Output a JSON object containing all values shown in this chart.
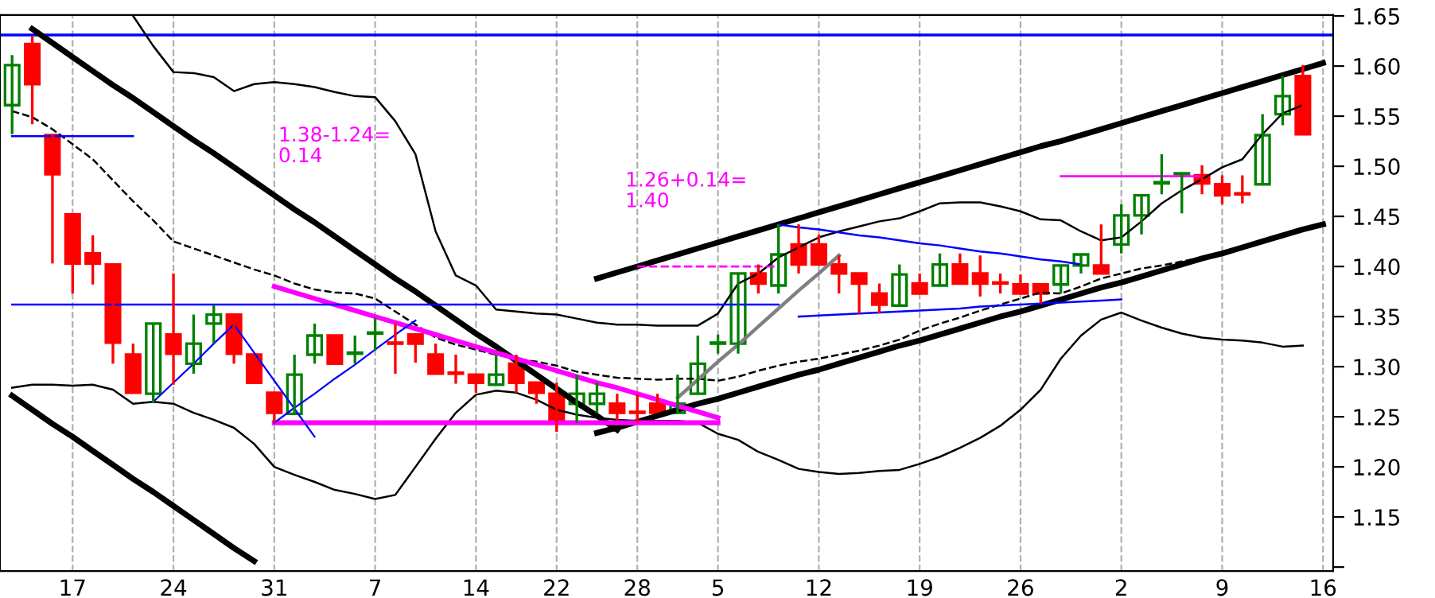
{
  "chart_data": {
    "type": "candlestick",
    "categories": [
      null,
      null,
      null,
      "17",
      null,
      null,
      null,
      null,
      "24",
      null,
      null,
      null,
      null,
      "31",
      null,
      null,
      null,
      null,
      "7",
      null,
      null,
      null,
      null,
      "14",
      null,
      null,
      null,
      "22",
      null,
      null,
      null,
      "28",
      null,
      null,
      null,
      "5",
      null,
      null,
      null,
      null,
      "12",
      null,
      null,
      null,
      null,
      "19",
      null,
      null,
      null,
      null,
      "26",
      null,
      null,
      null,
      null,
      "2",
      null,
      null,
      null,
      null,
      "9",
      null,
      null,
      null,
      null,
      "16"
    ],
    "ohlc": [
      [
        1.561,
        1.611,
        1.532,
        1.601
      ],
      [
        1.622,
        1.63,
        1.542,
        1.582
      ],
      [
        1.531,
        1.531,
        1.403,
        1.492
      ],
      [
        1.452,
        1.452,
        1.373,
        1.403
      ],
      [
        1.413,
        1.431,
        1.382,
        1.403
      ],
      [
        1.402,
        1.402,
        1.303,
        1.324
      ],
      [
        1.312,
        1.323,
        1.274,
        1.274
      ],
      [
        1.273,
        1.343,
        1.264,
        1.343
      ],
      [
        1.332,
        1.393,
        1.282,
        1.313
      ],
      [
        1.303,
        1.352,
        1.293,
        1.323
      ],
      [
        1.343,
        1.361,
        1.323,
        1.352
      ],
      [
        1.352,
        1.352,
        1.303,
        1.313
      ],
      [
        1.312,
        1.312,
        1.284,
        1.284
      ],
      [
        1.274,
        1.274,
        1.244,
        1.254
      ],
      [
        1.253,
        1.312,
        1.253,
        1.292
      ],
      [
        1.312,
        1.343,
        1.303,
        1.331
      ],
      [
        1.331,
        1.331,
        1.303,
        1.303
      ],
      [
        1.313,
        1.331,
        1.303,
        1.314
      ],
      [
        1.333,
        1.349,
        1.316,
        1.334
      ],
      [
        1.324,
        1.343,
        1.293,
        1.323
      ],
      [
        1.332,
        1.332,
        1.304,
        1.323
      ],
      [
        1.312,
        1.323,
        1.293,
        1.293
      ],
      [
        1.294,
        1.312,
        1.283,
        1.293
      ],
      [
        1.292,
        1.292,
        1.274,
        1.284
      ],
      [
        1.282,
        1.312,
        1.282,
        1.292
      ],
      [
        1.303,
        1.312,
        1.274,
        1.284
      ],
      [
        1.284,
        1.284,
        1.263,
        1.274
      ],
      [
        1.273,
        1.284,
        1.235,
        1.244
      ],
      [
        1.263,
        1.292,
        1.244,
        1.273
      ],
      [
        1.263,
        1.284,
        1.254,
        1.273
      ],
      [
        1.263,
        1.273,
        1.246,
        1.254
      ],
      [
        1.255,
        1.273,
        1.244,
        1.254
      ],
      [
        1.263,
        1.273,
        1.254,
        1.254
      ],
      [
        1.254,
        1.292,
        1.254,
        1.263
      ],
      [
        1.273,
        1.331,
        1.273,
        1.303
      ],
      [
        1.323,
        1.332,
        1.313,
        1.324
      ],
      [
        1.323,
        1.393,
        1.313,
        1.393
      ],
      [
        1.393,
        1.402,
        1.373,
        1.383
      ],
      [
        1.381,
        1.442,
        1.373,
        1.412
      ],
      [
        1.422,
        1.442,
        1.393,
        1.402
      ],
      [
        1.422,
        1.432,
        1.402,
        1.402
      ],
      [
        1.402,
        1.411,
        1.373,
        1.393
      ],
      [
        1.393,
        1.393,
        1.353,
        1.383
      ],
      [
        1.373,
        1.383,
        1.353,
        1.362
      ],
      [
        1.361,
        1.402,
        1.361,
        1.392
      ],
      [
        1.383,
        1.393,
        1.373,
        1.373
      ],
      [
        1.381,
        1.413,
        1.381,
        1.402
      ],
      [
        1.402,
        1.413,
        1.383,
        1.383
      ],
      [
        1.393,
        1.411,
        1.37,
        1.383
      ],
      [
        1.384,
        1.393,
        1.373,
        1.383
      ],
      [
        1.382,
        1.392,
        1.373,
        1.373
      ],
      [
        1.382,
        1.382,
        1.363,
        1.373
      ],
      [
        1.382,
        1.401,
        1.373,
        1.401
      ],
      [
        1.401,
        1.412,
        1.393,
        1.412
      ],
      [
        1.401,
        1.442,
        1.393,
        1.393
      ],
      [
        1.422,
        1.462,
        1.413,
        1.451
      ],
      [
        1.451,
        1.471,
        1.432,
        1.471
      ],
      [
        1.483,
        1.512,
        1.472,
        1.484
      ],
      [
        1.492,
        1.493,
        1.453,
        1.493
      ],
      [
        1.491,
        1.501,
        1.472,
        1.483
      ],
      [
        1.482,
        1.491,
        1.462,
        1.471
      ],
      [
        1.473,
        1.491,
        1.463,
        1.472
      ],
      [
        1.482,
        1.552,
        1.482,
        1.531
      ],
      [
        1.552,
        1.59,
        1.541,
        1.57
      ],
      [
        1.59,
        1.601,
        1.532,
        1.532
      ],
      null
    ],
    "colors": [
      "#008000",
      "#ff0000",
      "#ff0000",
      "#ff0000",
      "#ff0000",
      "#ff0000",
      "#ff0000",
      "#008000",
      "#ff0000",
      "#008000",
      "#008000",
      "#ff0000",
      "#ff0000",
      "#ff0000",
      "#008000",
      "#008000",
      "#ff0000",
      "#008000",
      "#008000",
      "#ff0000",
      "#ff0000",
      "#ff0000",
      "#ff0000",
      "#ff0000",
      "#008000",
      "#ff0000",
      "#ff0000",
      "#ff0000",
      "#008000",
      "#008000",
      "#ff0000",
      "#ff0000",
      "#ff0000",
      "#008000",
      "#008000",
      "#008000",
      "#008000",
      "#ff0000",
      "#008000",
      "#ff0000",
      "#ff0000",
      "#ff0000",
      "#ff0000",
      "#ff0000",
      "#008000",
      "#ff0000",
      "#008000",
      "#ff0000",
      "#ff0000",
      "#ff0000",
      "#ff0000",
      "#ff0000",
      "#008000",
      "#008000",
      "#ff0000",
      "#008000",
      "#008000",
      "#008000",
      "#008000",
      "#ff0000",
      "#ff0000",
      "#ff0000",
      "#008000",
      "#008000",
      "#ff0000",
      null
    ],
    "series": [
      {
        "type": "line",
        "color": "#000000",
        "line_style": "solid",
        "values": [
          null,
          null,
          null,
          null,
          null,
          null,
          1.65,
          1.62,
          1.594,
          1.593,
          1.589,
          1.575,
          1.582,
          1.584,
          1.582,
          1.579,
          1.574,
          1.57,
          1.569,
          1.545,
          1.512,
          1.435,
          1.391,
          1.381,
          1.357,
          1.355,
          1.353,
          1.352,
          1.348,
          1.344,
          1.342,
          1.342,
          1.341,
          1.341,
          1.341,
          1.353,
          1.383,
          1.393,
          1.409,
          1.419,
          1.429,
          1.435,
          1.44,
          1.445,
          1.448,
          1.455,
          1.463,
          1.464,
          1.464,
          1.46,
          1.455,
          1.447,
          1.446,
          1.435,
          1.426,
          1.429,
          1.445,
          1.463,
          1.476,
          1.487,
          1.499,
          1.507,
          1.532,
          1.553,
          1.561,
          null
        ]
      },
      {
        "type": "line",
        "color": "#000000",
        "line_style": "dashed",
        "values": [
          1.555,
          1.549,
          1.537,
          1.522,
          1.507,
          1.486,
          1.465,
          1.446,
          1.425,
          1.418,
          1.411,
          1.404,
          1.397,
          1.391,
          1.383,
          1.377,
          1.374,
          1.373,
          1.368,
          1.355,
          1.342,
          1.329,
          1.322,
          1.317,
          1.312,
          1.308,
          1.305,
          1.301,
          1.295,
          1.292,
          1.289,
          1.288,
          1.287,
          1.288,
          1.288,
          1.286,
          1.29,
          1.296,
          1.301,
          1.305,
          1.308,
          1.312,
          1.316,
          1.321,
          1.327,
          1.336,
          1.343,
          1.349,
          1.356,
          1.362,
          1.368,
          1.374,
          1.373,
          1.38,
          1.388,
          1.393,
          1.398,
          1.401,
          1.405,
          1.409,
          1.413,
          1.418,
          null,
          null,
          null,
          null
        ]
      },
      {
        "type": "line",
        "color": "#000000",
        "line_style": "solid",
        "values": [
          1.279,
          1.282,
          1.282,
          1.281,
          1.282,
          1.277,
          1.263,
          1.265,
          1.263,
          1.254,
          1.247,
          1.239,
          1.223,
          1.2,
          1.192,
          1.185,
          1.177,
          1.173,
          1.168,
          1.172,
          1.2,
          1.228,
          1.254,
          1.272,
          1.276,
          1.274,
          1.267,
          1.257,
          1.252,
          1.249,
          1.247,
          1.246,
          1.246,
          1.246,
          1.244,
          1.233,
          1.227,
          1.215,
          1.207,
          1.198,
          1.195,
          1.193,
          1.194,
          1.196,
          1.197,
          1.203,
          1.21,
          1.219,
          1.229,
          1.241,
          1.257,
          1.277,
          1.308,
          1.331,
          1.347,
          1.354,
          1.346,
          1.339,
          1.333,
          1.329,
          1.327,
          1.326,
          1.324,
          1.32,
          1.321,
          null
        ]
      },
      {
        "type": "line",
        "color": "#000000",
        "line_style": "solid",
        "values": [
          null,
          1.637,
          1.623,
          1.609,
          1.595,
          1.581,
          1.568,
          1.554,
          1.54,
          1.526,
          1.513,
          1.499,
          1.485,
          1.471,
          1.457,
          1.444,
          1.43,
          1.416,
          1.402,
          1.388,
          1.375,
          1.361,
          1.347,
          1.333,
          1.32,
          1.306,
          1.292,
          1.278,
          1.264,
          1.251,
          1.237,
          null,
          null,
          null,
          null,
          null,
          null,
          null,
          null,
          null,
          null,
          null,
          null,
          null,
          null,
          null,
          null,
          null,
          null,
          null,
          null,
          null,
          null,
          null,
          null,
          null,
          null,
          null,
          null,
          null,
          null,
          null,
          null,
          null,
          null,
          null
        ]
      },
      {
        "type": "line",
        "color": "#000000",
        "line_style": "solid",
        "values": [
          1.271,
          1.257,
          1.243,
          1.23,
          1.216,
          1.202,
          1.188,
          1.175,
          1.161,
          1.147,
          1.133,
          1.119,
          1.106,
          null,
          null,
          null,
          null,
          null,
          null,
          null,
          null,
          null,
          null,
          null,
          null,
          null,
          null,
          null,
          null,
          null,
          null,
          null,
          null,
          null,
          null,
          null,
          null,
          null,
          null,
          null,
          null,
          null,
          null,
          null,
          null,
          null,
          null,
          null,
          null,
          null,
          null,
          null,
          null,
          null,
          null,
          null,
          null,
          null,
          null,
          null,
          null,
          null,
          null,
          null,
          null,
          null
        ]
      },
      {
        "type": "line",
        "color": "#000000",
        "line_style": "solid",
        "values": [
          null,
          null,
          null,
          null,
          null,
          null,
          null,
          null,
          null,
          null,
          null,
          null,
          null,
          null,
          null,
          null,
          null,
          null,
          null,
          null,
          null,
          null,
          null,
          null,
          null,
          null,
          null,
          null,
          null,
          1.388,
          1.394,
          1.4,
          1.406,
          1.412,
          1.418,
          1.424,
          1.43,
          1.436,
          1.442,
          1.448,
          1.454,
          1.46,
          1.466,
          1.472,
          1.478,
          1.484,
          1.49,
          1.496,
          1.502,
          1.508,
          1.514,
          1.52,
          1.525,
          1.531,
          1.537,
          1.543,
          1.549,
          1.555,
          1.561,
          1.567,
          1.573,
          1.579,
          1.585,
          1.591,
          1.597,
          1.603
        ]
      },
      {
        "type": "line",
        "color": "#000000",
        "line_style": "solid",
        "values": [
          null,
          null,
          null,
          null,
          null,
          null,
          null,
          null,
          null,
          null,
          null,
          null,
          null,
          null,
          null,
          null,
          null,
          null,
          null,
          null,
          null,
          null,
          null,
          null,
          null,
          null,
          null,
          null,
          null,
          1.234,
          1.239,
          1.245,
          1.251,
          1.257,
          1.263,
          1.268,
          1.274,
          1.28,
          1.286,
          1.292,
          1.297,
          1.303,
          1.309,
          1.315,
          1.321,
          1.326,
          1.332,
          1.338,
          1.344,
          1.35,
          1.355,
          1.361,
          1.367,
          1.373,
          1.379,
          1.384,
          1.39,
          1.396,
          1.402,
          1.408,
          1.413,
          1.419,
          1.425,
          1.431,
          1.437,
          1.442
        ]
      },
      {
        "type": "line",
        "color": "#ff00ff",
        "line_style": "solid",
        "values": [
          null,
          null,
          null,
          null,
          null,
          null,
          null,
          null,
          null,
          null,
          null,
          null,
          null,
          1.38,
          1.374,
          1.368,
          1.362,
          1.356,
          1.35,
          1.344,
          1.338,
          1.332,
          1.326,
          1.32,
          1.314,
          1.308,
          1.302,
          1.296,
          1.29,
          1.284,
          1.279,
          1.273,
          1.267,
          1.261,
          1.255,
          1.249,
          null,
          null,
          null,
          null,
          null,
          null,
          null,
          null,
          null,
          null,
          null,
          null,
          null,
          null,
          null,
          null,
          null,
          null,
          null,
          null,
          null,
          null,
          null,
          null,
          null,
          null,
          null,
          null,
          null,
          null
        ]
      },
      {
        "type": "line",
        "color": "#ff00ff",
        "line_style": "solid",
        "values": [
          null,
          null,
          null,
          null,
          null,
          null,
          null,
          null,
          null,
          null,
          null,
          null,
          null,
          1.244,
          1.244,
          1.244,
          1.244,
          1.244,
          1.244,
          1.244,
          1.244,
          1.244,
          1.244,
          1.244,
          1.244,
          1.244,
          1.244,
          1.244,
          1.244,
          1.244,
          1.244,
          1.244,
          1.244,
          1.244,
          1.244,
          1.244,
          null,
          null,
          null,
          null,
          null,
          null,
          null,
          null,
          null,
          null,
          null,
          null,
          null,
          null,
          null,
          null,
          null,
          null,
          null,
          null,
          null,
          null,
          null,
          null,
          null,
          null,
          null,
          null,
          null,
          null
        ]
      },
      {
        "type": "line",
        "color": "#808080",
        "line_style": "solid",
        "values": [
          null,
          null,
          null,
          null,
          null,
          null,
          null,
          null,
          null,
          null,
          null,
          null,
          null,
          null,
          null,
          null,
          null,
          null,
          null,
          null,
          null,
          null,
          null,
          null,
          null,
          null,
          null,
          null,
          null,
          null,
          null,
          null,
          null,
          1.269,
          1.287,
          1.305,
          1.322,
          1.34,
          1.358,
          1.376,
          1.393,
          1.411,
          null,
          null,
          null,
          null,
          null,
          null,
          null,
          null,
          null,
          null,
          null,
          null,
          null,
          null,
          null,
          null,
          null,
          null,
          null,
          null,
          null,
          null,
          null,
          null
        ]
      },
      {
        "type": "line",
        "color": "#0000ff",
        "line_style": "solid",
        "values": [
          null,
          null,
          null,
          null,
          null,
          null,
          null,
          1.265,
          1.284,
          1.303,
          1.323,
          1.342,
          1.314,
          1.286,
          1.258,
          1.23,
          null,
          null,
          null,
          null,
          null,
          null,
          null,
          null,
          null,
          null,
          null,
          null,
          null,
          null,
          null,
          null,
          null,
          null,
          null,
          null,
          null,
          null,
          null,
          null,
          null,
          null,
          null,
          null,
          null,
          null,
          null,
          null,
          null,
          null,
          null,
          null,
          null,
          null,
          null,
          null,
          null,
          null,
          null,
          null,
          null,
          null,
          null,
          null,
          null,
          null
        ]
      },
      {
        "type": "line",
        "color": "#0000ff",
        "line_style": "solid",
        "values": [
          null,
          null,
          null,
          null,
          null,
          null,
          null,
          null,
          null,
          null,
          null,
          null,
          null,
          1.244,
          1.259,
          1.273,
          1.288,
          1.302,
          1.317,
          1.332,
          1.346,
          null,
          null,
          null,
          null,
          null,
          null,
          null,
          null,
          null,
          null,
          null,
          null,
          null,
          null,
          null,
          null,
          null,
          null,
          null,
          null,
          null,
          null,
          null,
          null,
          null,
          null,
          null,
          null,
          null,
          null,
          null,
          null,
          null,
          null,
          null,
          null,
          null,
          null,
          null,
          null,
          null,
          null,
          null,
          null,
          null
        ]
      },
      {
        "type": "line",
        "color": "#0000ff",
        "line_style": "solid",
        "values": [
          null,
          null,
          null,
          null,
          null,
          null,
          null,
          null,
          null,
          null,
          null,
          null,
          null,
          null,
          null,
          null,
          null,
          null,
          null,
          null,
          null,
          null,
          null,
          null,
          null,
          null,
          null,
          null,
          null,
          null,
          null,
          null,
          null,
          null,
          null,
          null,
          null,
          null,
          1.442,
          1.439,
          1.437,
          1.434,
          1.431,
          1.429,
          1.426,
          1.423,
          1.421,
          1.418,
          1.415,
          1.413,
          1.41,
          1.407,
          1.405,
          1.402,
          null,
          null,
          null,
          null,
          null,
          null,
          null,
          null,
          null,
          null,
          null,
          null
        ]
      },
      {
        "type": "line",
        "color": "#0000ff",
        "line_style": "solid",
        "values": [
          null,
          null,
          null,
          null,
          null,
          null,
          null,
          null,
          null,
          null,
          null,
          null,
          null,
          null,
          null,
          null,
          null,
          null,
          null,
          null,
          null,
          null,
          null,
          null,
          null,
          null,
          null,
          null,
          null,
          null,
          null,
          null,
          null,
          null,
          null,
          null,
          null,
          null,
          null,
          1.35,
          1.351,
          1.352,
          1.353,
          1.354,
          1.355,
          1.356,
          1.357,
          1.358,
          1.36,
          1.361,
          1.362,
          1.363,
          1.364,
          1.365,
          1.366,
          1.367,
          null,
          null,
          null,
          null,
          null,
          null,
          null,
          null,
          null,
          null
        ]
      },
      {
        "type": "line",
        "color": "#0000ff",
        "line_style": "solid",
        "values": [
          1.53,
          1.53,
          1.53,
          1.53,
          1.53,
          1.53,
          1.53,
          null,
          null,
          null,
          null,
          null,
          null,
          null,
          null,
          null,
          null,
          null,
          null,
          null,
          null,
          null,
          null,
          null,
          null,
          null,
          null,
          null,
          null,
          null,
          null,
          null,
          null,
          null,
          null,
          null,
          null,
          null,
          null,
          null,
          null,
          null,
          null,
          null,
          null,
          null,
          null,
          null,
          null,
          null,
          null,
          null,
          null,
          null,
          null,
          null,
          null,
          null,
          null,
          null,
          null,
          null,
          null,
          null,
          null,
          null
        ]
      },
      {
        "type": "line",
        "color": "#0000ff",
        "line_style": "solid",
        "values": [
          1.362,
          1.362,
          1.362,
          1.362,
          1.362,
          1.362,
          1.362,
          1.362,
          1.362,
          1.362,
          1.362,
          1.362,
          1.362,
          1.362,
          1.362,
          1.362,
          1.362,
          1.362,
          1.362,
          1.362,
          1.362,
          1.362,
          1.362,
          1.362,
          1.362,
          1.362,
          1.362,
          1.362,
          1.362,
          1.362,
          1.362,
          1.362,
          1.362,
          1.362,
          1.362,
          1.362,
          1.362,
          1.362,
          1.362,
          null,
          null,
          null,
          null,
          null,
          null,
          null,
          null,
          null,
          null,
          null,
          null,
          null,
          null,
          null,
          null,
          null,
          null,
          null,
          null,
          null,
          null,
          null,
          null,
          null,
          null,
          null
        ]
      },
      {
        "type": "line",
        "color": "#ff00ff",
        "line_style": "dashed",
        "values": [
          null,
          null,
          null,
          null,
          null,
          null,
          null,
          null,
          null,
          null,
          null,
          null,
          null,
          null,
          null,
          null,
          null,
          null,
          null,
          null,
          null,
          null,
          null,
          null,
          null,
          null,
          null,
          null,
          null,
          null,
          null,
          1.4,
          1.4,
          1.4,
          1.4,
          1.4,
          1.4,
          1.4,
          1.4,
          null,
          null,
          null,
          null,
          null,
          null,
          null,
          null,
          null,
          null,
          null,
          null,
          null,
          null,
          null,
          null,
          null,
          null,
          null,
          null,
          null,
          null,
          null,
          null,
          null,
          null,
          null
        ]
      },
      {
        "type": "line",
        "color": "#ff00ff",
        "line_style": "solid",
        "values": [
          null,
          null,
          null,
          null,
          null,
          null,
          null,
          null,
          null,
          null,
          null,
          null,
          null,
          null,
          null,
          null,
          null,
          null,
          null,
          null,
          null,
          null,
          null,
          null,
          null,
          null,
          null,
          null,
          null,
          null,
          null,
          null,
          null,
          null,
          null,
          null,
          null,
          null,
          null,
          null,
          null,
          null,
          null,
          null,
          null,
          null,
          null,
          null,
          null,
          null,
          null,
          null,
          1.49,
          1.49,
          1.49,
          1.49,
          1.49,
          1.49,
          1.49,
          1.49,
          null,
          null,
          null,
          null,
          null,
          null
        ]
      }
    ],
    "ref_lines": [
      {
        "axis": "y",
        "value": 1.631,
        "color": "#0000ff"
      }
    ],
    "annotations": [
      "1.38-1.24=\n0.14",
      "1.26+0.14=\n1.40"
    ],
    "ylim": [
      1.096,
      1.651
    ],
    "yticks": [
      {
        "value": 1.1,
        "label": null
      },
      1.15,
      {
        "value": 1.2,
        "label": "1.20"
      },
      1.25,
      {
        "value": 1.3,
        "label": "1.30"
      },
      1.35,
      {
        "value": 1.4,
        "label": "1.40"
      },
      1.45,
      {
        "value": 1.5,
        "label": "1.50"
      },
      1.55,
      {
        "value": 1.6,
        "label": "1.60"
      },
      1.65
    ],
    "grid": "x"
  }
}
